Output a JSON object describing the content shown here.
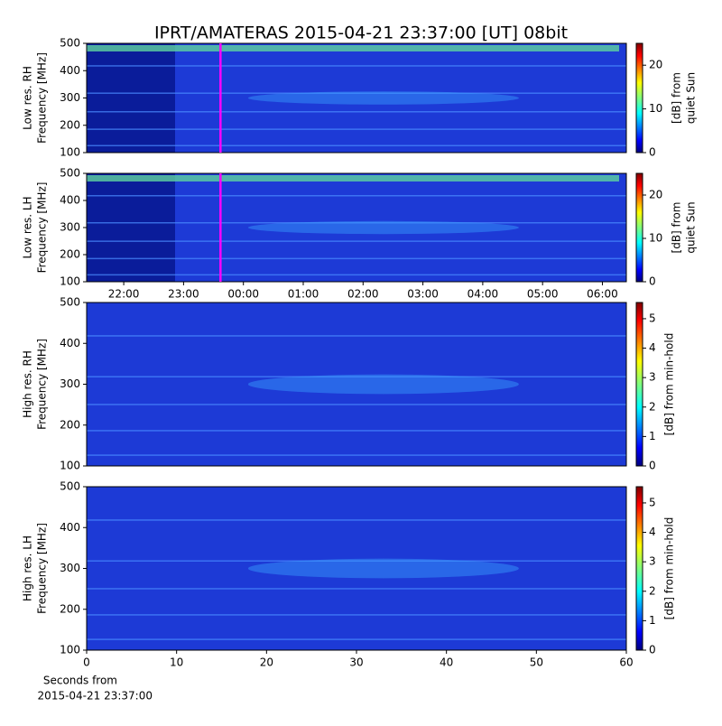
{
  "title": "IPRT/AMATERAS 2015-04-21 23:37:00 [UT]   08bit",
  "chart_data": [
    {
      "type": "heatmap",
      "ylabel": [
        "Low res. RH",
        "Frequency [MHz]"
      ],
      "ylim": [
        100,
        500
      ],
      "yticks": [
        100,
        200,
        300,
        400,
        500
      ],
      "xlim": [
        21.38,
        30.4
      ],
      "marker_x": 23.617,
      "marker_color": "#ff00ff",
      "colormap": "jet",
      "clim": [
        0,
        25
      ],
      "cticks": [
        0,
        10,
        20
      ],
      "clabel": [
        "[dB] from",
        "quiet Sun"
      ]
    },
    {
      "type": "heatmap",
      "ylabel": [
        "Low res. LH",
        "Frequency [MHz]"
      ],
      "ylim": [
        100,
        500
      ],
      "yticks": [
        100,
        200,
        300,
        400,
        500
      ],
      "xlim": [
        21.38,
        30.4
      ],
      "xticks": [
        {
          "value": 22,
          "label": "22:00"
        },
        {
          "value": 23,
          "label": "23:00"
        },
        {
          "value": 24,
          "label": "00:00"
        },
        {
          "value": 25,
          "label": "01:00"
        },
        {
          "value": 26,
          "label": "02:00"
        },
        {
          "value": 27,
          "label": "03:00"
        },
        {
          "value": 28,
          "label": "04:00"
        },
        {
          "value": 29,
          "label": "05:00"
        },
        {
          "value": 30,
          "label": "06:00"
        }
      ],
      "marker_x": 23.617,
      "marker_color": "#ff00ff",
      "colormap": "jet",
      "clim": [
        0,
        25
      ],
      "cticks": [
        0,
        10,
        20
      ],
      "clabel": [
        "[dB] from",
        "quiet Sun"
      ]
    },
    {
      "type": "heatmap",
      "ylabel": [
        "High res. RH",
        "Frequency [MHz]"
      ],
      "ylim": [
        100,
        500
      ],
      "yticks": [
        100,
        200,
        300,
        400,
        500
      ],
      "xlim": [
        0,
        60
      ],
      "colormap": "jet",
      "clim": [
        0,
        5.55
      ],
      "cticks": [
        0,
        1,
        2,
        3,
        4,
        5
      ],
      "clabel": [
        "[dB] from min-hold"
      ]
    },
    {
      "type": "heatmap",
      "ylabel": [
        "High res. LH",
        "Frequency [MHz]"
      ],
      "ylim": [
        100,
        500
      ],
      "yticks": [
        100,
        200,
        300,
        400,
        500
      ],
      "xlim": [
        0,
        60
      ],
      "xticks": [
        0,
        10,
        20,
        30,
        40,
        50,
        60
      ],
      "xlabel": [
        "Seconds from",
        "2015-04-21 23:37:00"
      ],
      "colormap": "jet",
      "clim": [
        0,
        5.55
      ],
      "cticks": [
        0,
        1,
        2,
        3,
        4,
        5
      ],
      "clabel": [
        "[dB] from min-hold"
      ]
    }
  ]
}
